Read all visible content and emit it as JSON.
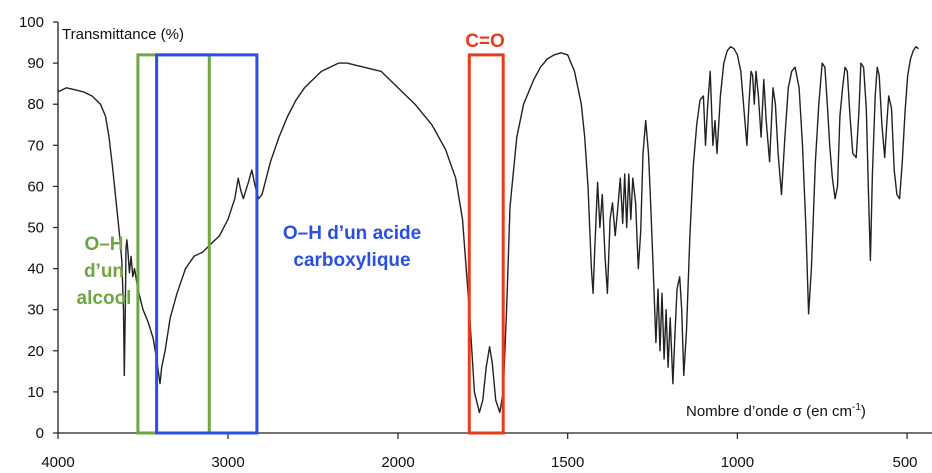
{
  "chart_data": {
    "type": "line",
    "ylabel": "Transmittance (%)",
    "xlabel_prefix": "Nombre d’onde σ (en cm",
    "xlabel_sup": "-1",
    "xlabel_suffix": ")",
    "xlim": [
      4000,
      400
    ],
    "ylim": [
      0,
      100
    ],
    "x_ticks": [
      4000,
      3000,
      2000,
      1500,
      1000,
      500
    ],
    "x_tick_labels": [
      "4000",
      "3000",
      "2000",
      "1500",
      "1000",
      "500"
    ],
    "y_ticks": [
      0,
      10,
      20,
      30,
      40,
      50,
      60,
      70,
      80,
      90,
      100
    ],
    "y_tick_labels": [
      "0",
      "10",
      "20",
      "30",
      "40",
      "50",
      "60",
      "70",
      "80",
      "90",
      "100"
    ],
    "series": [
      {
        "line_color": "#222222",
        "points": [
          [
            4000,
            83
          ],
          [
            3950,
            84
          ],
          [
            3900,
            83.5
          ],
          [
            3850,
            83
          ],
          [
            3800,
            82
          ],
          [
            3750,
            80
          ],
          [
            3720,
            77
          ],
          [
            3700,
            72
          ],
          [
            3680,
            65
          ],
          [
            3660,
            57
          ],
          [
            3640,
            49
          ],
          [
            3625,
            42
          ],
          [
            3615,
            30
          ],
          [
            3610,
            14
          ],
          [
            3605,
            28
          ],
          [
            3600,
            45
          ],
          [
            3595,
            47
          ],
          [
            3588,
            44
          ],
          [
            3580,
            39
          ],
          [
            3570,
            43
          ],
          [
            3560,
            38
          ],
          [
            3550,
            40
          ],
          [
            3530,
            35
          ],
          [
            3500,
            30
          ],
          [
            3470,
            27
          ],
          [
            3440,
            23
          ],
          [
            3420,
            18
          ],
          [
            3400,
            12
          ],
          [
            3390,
            16
          ],
          [
            3370,
            20
          ],
          [
            3340,
            28
          ],
          [
            3300,
            34
          ],
          [
            3250,
            40
          ],
          [
            3200,
            43
          ],
          [
            3150,
            44
          ],
          [
            3100,
            46
          ],
          [
            3050,
            48
          ],
          [
            3000,
            52
          ],
          [
            2960,
            57
          ],
          [
            2940,
            62
          ],
          [
            2925,
            59
          ],
          [
            2910,
            57
          ],
          [
            2880,
            61
          ],
          [
            2860,
            64
          ],
          [
            2840,
            60
          ],
          [
            2820,
            57
          ],
          [
            2800,
            58
          ],
          [
            2750,
            66
          ],
          [
            2700,
            72
          ],
          [
            2650,
            77
          ],
          [
            2600,
            81
          ],
          [
            2550,
            84
          ],
          [
            2500,
            86
          ],
          [
            2450,
            88
          ],
          [
            2400,
            89
          ],
          [
            2350,
            90
          ],
          [
            2300,
            90
          ],
          [
            2250,
            89.5
          ],
          [
            2200,
            89
          ],
          [
            2150,
            88.5
          ],
          [
            2100,
            88
          ],
          [
            2050,
            86
          ],
          [
            2000,
            84
          ],
          [
            1950,
            80
          ],
          [
            1900,
            75
          ],
          [
            1860,
            69
          ],
          [
            1830,
            62
          ],
          [
            1810,
            52
          ],
          [
            1790,
            30
          ],
          [
            1775,
            10
          ],
          [
            1760,
            5
          ],
          [
            1750,
            8
          ],
          [
            1740,
            16
          ],
          [
            1730,
            21
          ],
          [
            1722,
            17
          ],
          [
            1712,
            8
          ],
          [
            1700,
            5
          ],
          [
            1690,
            10
          ],
          [
            1680,
            30
          ],
          [
            1670,
            55
          ],
          [
            1650,
            72
          ],
          [
            1630,
            80
          ],
          [
            1600,
            86
          ],
          [
            1580,
            89
          ],
          [
            1560,
            91
          ],
          [
            1540,
            92
          ],
          [
            1520,
            92.5
          ],
          [
            1500,
            92
          ],
          [
            1480,
            88
          ],
          [
            1460,
            80
          ],
          [
            1450,
            72
          ],
          [
            1440,
            60
          ],
          [
            1430,
            40
          ],
          [
            1425,
            34
          ],
          [
            1420,
            45
          ],
          [
            1412,
            61
          ],
          [
            1405,
            50
          ],
          [
            1398,
            58
          ],
          [
            1390,
            43
          ],
          [
            1383,
            34
          ],
          [
            1375,
            52
          ],
          [
            1368,
            56
          ],
          [
            1360,
            48
          ],
          [
            1352,
            55
          ],
          [
            1345,
            62
          ],
          [
            1338,
            51
          ],
          [
            1332,
            63
          ],
          [
            1326,
            50
          ],
          [
            1320,
            63
          ],
          [
            1314,
            52
          ],
          [
            1308,
            62
          ],
          [
            1300,
            56
          ],
          [
            1292,
            40
          ],
          [
            1285,
            49
          ],
          [
            1278,
            68
          ],
          [
            1270,
            76
          ],
          [
            1262,
            68
          ],
          [
            1255,
            55
          ],
          [
            1248,
            40
          ],
          [
            1240,
            22
          ],
          [
            1234,
            35
          ],
          [
            1228,
            20
          ],
          [
            1222,
            34
          ],
          [
            1216,
            18
          ],
          [
            1210,
            30
          ],
          [
            1204,
            16
          ],
          [
            1198,
            28
          ],
          [
            1190,
            12
          ],
          [
            1185,
            22
          ],
          [
            1178,
            35
          ],
          [
            1170,
            38
          ],
          [
            1164,
            30
          ],
          [
            1158,
            14
          ],
          [
            1150,
            25
          ],
          [
            1140,
            48
          ],
          [
            1130,
            65
          ],
          [
            1120,
            75
          ],
          [
            1110,
            81
          ],
          [
            1100,
            82
          ],
          [
            1094,
            70
          ],
          [
            1088,
            79
          ],
          [
            1080,
            88
          ],
          [
            1072,
            70
          ],
          [
            1066,
            76
          ],
          [
            1060,
            68
          ],
          [
            1050,
            82
          ],
          [
            1040,
            90
          ],
          [
            1030,
            93
          ],
          [
            1020,
            94
          ],
          [
            1010,
            93.5
          ],
          [
            1000,
            92
          ],
          [
            990,
            88
          ],
          [
            980,
            78
          ],
          [
            972,
            70
          ],
          [
            966,
            80
          ],
          [
            960,
            88
          ],
          [
            955,
            87
          ],
          [
            950,
            80
          ],
          [
            945,
            88
          ],
          [
            938,
            82
          ],
          [
            930,
            72
          ],
          [
            922,
            86
          ],
          [
            915,
            76
          ],
          [
            905,
            66
          ],
          [
            895,
            84
          ],
          [
            888,
            80
          ],
          [
            880,
            68
          ],
          [
            870,
            58
          ],
          [
            860,
            72
          ],
          [
            850,
            84
          ],
          [
            840,
            88
          ],
          [
            830,
            89
          ],
          [
            818,
            84
          ],
          [
            808,
            70
          ],
          [
            798,
            50
          ],
          [
            790,
            29
          ],
          [
            782,
            40
          ],
          [
            770,
            66
          ],
          [
            760,
            80
          ],
          [
            750,
            90
          ],
          [
            742,
            89
          ],
          [
            735,
            80
          ],
          [
            728,
            70
          ],
          [
            720,
            62
          ],
          [
            712,
            57
          ],
          [
            705,
            60
          ],
          [
            698,
            77
          ],
          [
            690,
            84
          ],
          [
            683,
            89
          ],
          [
            676,
            88
          ],
          [
            668,
            77
          ],
          [
            660,
            68
          ],
          [
            650,
            67
          ],
          [
            642,
            78
          ],
          [
            636,
            90
          ],
          [
            628,
            89
          ],
          [
            620,
            79
          ],
          [
            614,
            59
          ],
          [
            608,
            42
          ],
          [
            602,
            63
          ],
          [
            594,
            82
          ],
          [
            588,
            89
          ],
          [
            582,
            87
          ],
          [
            574,
            75
          ],
          [
            566,
            67
          ],
          [
            560,
            75
          ],
          [
            554,
            82
          ],
          [
            546,
            79
          ],
          [
            538,
            64
          ],
          [
            530,
            58
          ],
          [
            522,
            57
          ],
          [
            514,
            66
          ],
          [
            506,
            78
          ],
          [
            498,
            87
          ],
          [
            490,
            91
          ],
          [
            482,
            93
          ],
          [
            474,
            94
          ],
          [
            466,
            93.5
          ]
        ]
      }
    ],
    "annotations": [
      {
        "text_lines": [
          "O–H",
          "d’un",
          "alcool"
        ],
        "color": "#70a642",
        "x_range": [
          3530,
          3110
        ],
        "y_range": [
          0,
          92
        ]
      },
      {
        "text_lines": [
          "O–H d’un acide",
          "carboxylique"
        ],
        "color": "#2b4fe3",
        "x_range": [
          3420,
          2830
        ],
        "y_range": [
          0,
          92
        ]
      },
      {
        "text_lines": [
          "C=O"
        ],
        "color": "#ea3a1c",
        "x_range": [
          1790,
          1690
        ],
        "y_range": [
          0,
          92
        ]
      }
    ]
  }
}
